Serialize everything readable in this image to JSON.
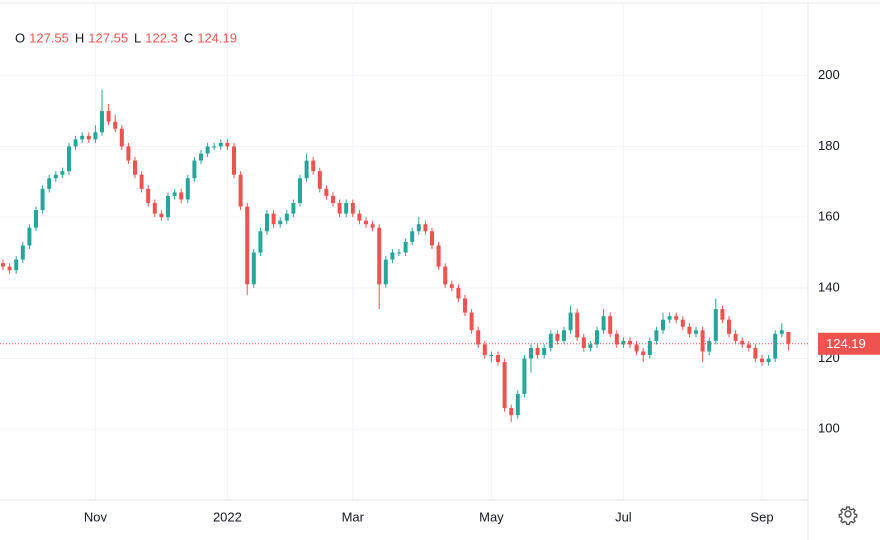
{
  "chart_data": {
    "type": "candlestick",
    "ohlc_labels": [
      "O",
      "H",
      "L",
      "C"
    ],
    "categories": [
      null,
      null,
      null,
      null,
      null,
      null,
      null,
      null,
      null,
      null,
      null,
      null,
      null,
      null,
      "Nov",
      null,
      null,
      null,
      null,
      null,
      null,
      null,
      null,
      null,
      null,
      null,
      null,
      null,
      null,
      null,
      null,
      null,
      null,
      null,
      "2022",
      null,
      null,
      null,
      null,
      null,
      null,
      null,
      null,
      null,
      null,
      null,
      null,
      null,
      null,
      null,
      null,
      null,
      null,
      "Mar",
      null,
      null,
      null,
      null,
      null,
      null,
      null,
      null,
      null,
      null,
      null,
      null,
      null,
      null,
      null,
      null,
      null,
      null,
      null,
      null,
      "May",
      null,
      null,
      null,
      null,
      null,
      null,
      null,
      null,
      null,
      null,
      null,
      null,
      null,
      null,
      null,
      null,
      null,
      null,
      null,
      "Jul",
      null,
      null,
      null,
      null,
      null,
      null,
      null,
      null,
      null,
      null,
      null,
      null,
      null,
      null,
      null,
      null,
      null,
      null,
      null,
      null,
      "Sep",
      null,
      null,
      null,
      null
    ],
    "open": [
      147,
      146,
      145,
      148,
      152,
      157,
      162,
      168,
      171,
      172,
      173,
      180,
      182,
      183,
      182,
      184,
      190,
      187,
      185,
      180,
      176,
      172,
      168,
      164,
      161,
      160,
      166,
      167,
      165,
      171,
      176,
      178,
      180,
      180,
      181,
      180,
      172,
      163,
      141,
      150,
      156,
      161,
      158,
      159,
      161,
      164,
      171,
      176,
      173,
      168,
      166,
      164,
      161,
      164,
      161,
      159,
      158,
      157,
      141,
      148,
      150,
      150,
      153,
      156,
      158,
      156,
      152,
      146,
      141,
      140,
      137,
      133,
      128,
      124,
      121,
      121,
      119,
      106,
      104,
      110,
      120,
      123,
      121,
      123,
      127,
      125,
      128,
      133,
      126,
      123,
      124,
      128,
      132,
      127,
      124,
      125,
      124,
      122,
      121,
      125,
      128,
      131,
      132,
      131,
      129,
      127,
      128,
      122,
      125,
      134,
      131,
      127,
      125,
      124,
      123,
      120,
      119,
      120,
      127,
      127.55
    ],
    "high": [
      148,
      147,
      149,
      153,
      158,
      163,
      169,
      172,
      173,
      174,
      181,
      183,
      184,
      184,
      186,
      196,
      192,
      189,
      186,
      181,
      177,
      173,
      169,
      165,
      162,
      167,
      168,
      168,
      172,
      177,
      179,
      181,
      181,
      182,
      182,
      181,
      173,
      164,
      151,
      157,
      162,
      162,
      160,
      162,
      165,
      172,
      178,
      177,
      174,
      169,
      167,
      165,
      165,
      165,
      162,
      160,
      159,
      158,
      149,
      151,
      151,
      154,
      157,
      160,
      159,
      157,
      153,
      147,
      142,
      141,
      138,
      134,
      129,
      125,
      122,
      122,
      120,
      107,
      111,
      121,
      124,
      124,
      124,
      128,
      128,
      129,
      135,
      134,
      127,
      125,
      129,
      134,
      133,
      128,
      126,
      126,
      125,
      123,
      126,
      129,
      133,
      133,
      133,
      132,
      130,
      129,
      129,
      126,
      137,
      135,
      132,
      128,
      126,
      125,
      124,
      121,
      121,
      128,
      130,
      127.55
    ],
    "low": [
      145,
      144,
      144,
      147,
      151,
      156,
      161,
      167,
      170,
      171,
      172,
      179,
      181,
      181,
      181,
      183,
      186,
      184,
      179,
      175,
      171,
      167,
      163,
      160,
      159,
      159,
      165,
      164,
      164,
      170,
      175,
      177,
      179,
      179,
      179,
      171,
      162,
      138,
      140,
      149,
      155,
      157,
      157,
      158,
      160,
      163,
      170,
      172,
      167,
      165,
      163,
      160,
      160,
      160,
      158,
      157,
      156,
      134,
      140,
      147,
      149,
      149,
      152,
      155,
      155,
      151,
      145,
      140,
      139,
      136,
      132,
      127,
      123,
      120,
      119,
      118,
      105,
      102,
      103,
      109,
      116,
      120,
      120,
      122,
      124,
      124,
      127,
      125,
      122,
      122,
      123,
      127,
      126,
      123,
      123,
      123,
      121,
      119,
      120,
      124,
      127,
      130,
      130,
      128,
      126,
      126,
      119,
      121,
      124,
      130,
      126,
      124,
      123,
      122,
      119,
      118,
      118,
      119,
      126,
      122.3
    ],
    "close": [
      146,
      145,
      148,
      152,
      157,
      162,
      168,
      171,
      172,
      173,
      180,
      182,
      183,
      182,
      184,
      190,
      187,
      185,
      180,
      176,
      172,
      168,
      164,
      161,
      160,
      166,
      167,
      165,
      171,
      176,
      178,
      180,
      180,
      181,
      180,
      172,
      163,
      141,
      150,
      156,
      161,
      158,
      159,
      161,
      164,
      171,
      176,
      173,
      168,
      166,
      164,
      161,
      164,
      161,
      159,
      158,
      157,
      141,
      148,
      150,
      150,
      153,
      156,
      158,
      156,
      152,
      146,
      141,
      140,
      137,
      133,
      128,
      124,
      121,
      121,
      119,
      106,
      104,
      110,
      120,
      123,
      121,
      123,
      127,
      125,
      128,
      133,
      126,
      123,
      124,
      128,
      132,
      127,
      124,
      125,
      124,
      122,
      121,
      125,
      128,
      131,
      132,
      131,
      129,
      127,
      128,
      122,
      125,
      134,
      131,
      127,
      125,
      124,
      123,
      120,
      119,
      120,
      127,
      128,
      124.19
    ],
    "up_color": "#26a69a",
    "down_color": "#ef5350",
    "ylim": [
      80,
      220
    ],
    "yticks": [
      100,
      120,
      140,
      160,
      180,
      200
    ],
    "grid": true
  }
}
